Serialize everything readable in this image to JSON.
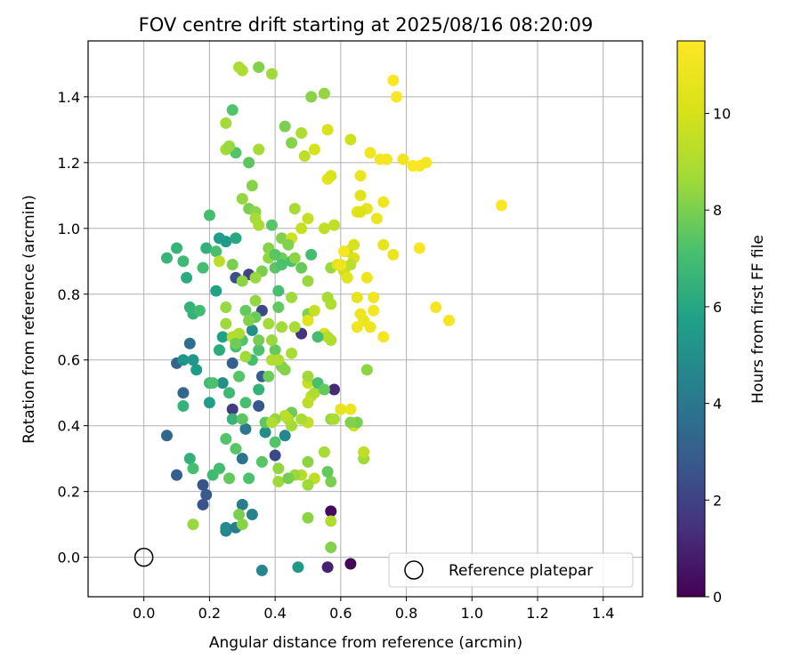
{
  "chart_data": {
    "type": "scatter",
    "title": "FOV centre drift starting at 2025/08/16 08:20:09",
    "xlabel": "Angular distance from reference (arcmin)",
    "ylabel": "Rotation from reference (arcmin)",
    "xlim": [
      -0.17,
      1.52
    ],
    "ylim": [
      -0.12,
      1.57
    ],
    "xticks": [
      0.0,
      0.2,
      0.4,
      0.6,
      0.8,
      1.0,
      1.2,
      1.4
    ],
    "xtick_labels": [
      "0.0",
      "0.2",
      "0.4",
      "0.6",
      "0.8",
      "1.0",
      "1.2",
      "1.4"
    ],
    "yticks": [
      0.0,
      0.2,
      0.4,
      0.6,
      0.8,
      1.0,
      1.2,
      1.4
    ],
    "ytick_labels": [
      "0.0",
      "0.2",
      "0.4",
      "0.6",
      "0.8",
      "1.0",
      "1.2",
      "1.4"
    ],
    "grid": true,
    "colormap": "viridis",
    "colorbar": {
      "label": "Hours from first FF file",
      "range": [
        0,
        11.5
      ],
      "ticks": [
        0,
        2,
        4,
        6,
        8,
        10
      ],
      "tick_labels": [
        "0",
        "2",
        "4",
        "6",
        "8",
        "10"
      ]
    },
    "legend": {
      "position": "lower-right",
      "entries": [
        "Reference platepar"
      ]
    },
    "reference_point": {
      "x": 0.0,
      "y": 0.0,
      "label": "Reference platepar"
    },
    "points": [
      [
        0.57,
        0.14,
        0.3
      ],
      [
        0.63,
        -0.02,
        0.2
      ],
      [
        0.56,
        -0.03,
        1.0
      ],
      [
        0.36,
        -0.04,
        4.6
      ],
      [
        0.47,
        -0.03,
        5.4
      ],
      [
        0.58,
        0.51,
        1.2
      ],
      [
        0.48,
        0.68,
        1.5
      ],
      [
        0.27,
        0.45,
        1.8
      ],
      [
        0.32,
        0.86,
        2.0
      ],
      [
        0.4,
        0.31,
        2.3
      ],
      [
        0.28,
        0.85,
        2.4
      ],
      [
        0.18,
        0.16,
        2.6
      ],
      [
        0.18,
        0.22,
        2.6
      ],
      [
        0.19,
        0.19,
        2.8
      ],
      [
        0.27,
        0.59,
        3.0
      ],
      [
        0.35,
        0.46,
        2.7
      ],
      [
        0.36,
        0.55,
        2.9
      ],
      [
        0.36,
        0.75,
        2.2
      ],
      [
        0.1,
        0.25,
        3.0
      ],
      [
        0.1,
        0.59,
        3.2
      ],
      [
        0.07,
        0.37,
        3.4
      ],
      [
        0.12,
        0.5,
        3.4
      ],
      [
        0.14,
        0.65,
        3.6
      ],
      [
        0.3,
        0.3,
        3.8
      ],
      [
        0.31,
        0.39,
        4.0
      ],
      [
        0.3,
        0.16,
        4.2
      ],
      [
        0.33,
        0.13,
        4.4
      ],
      [
        0.25,
        0.08,
        4.6
      ],
      [
        0.25,
        0.09,
        4.8
      ],
      [
        0.28,
        0.09,
        4.2
      ],
      [
        0.37,
        0.38,
        4.9
      ],
      [
        0.43,
        0.37,
        4.6
      ],
      [
        0.33,
        0.69,
        5.0
      ],
      [
        0.12,
        0.6,
        5.2
      ],
      [
        0.15,
        0.6,
        5.3
      ],
      [
        0.16,
        0.57,
        5.5
      ],
      [
        0.2,
        0.47,
        5.6
      ],
      [
        0.24,
        0.67,
        5.7
      ],
      [
        0.24,
        0.53,
        5.0
      ],
      [
        0.22,
        0.81,
        5.8
      ],
      [
        0.25,
        0.96,
        5.4
      ],
      [
        0.23,
        0.97,
        5.6
      ],
      [
        0.28,
        0.97,
        6.0
      ],
      [
        0.23,
        0.63,
        6.2
      ],
      [
        0.14,
        0.3,
        6.4
      ],
      [
        0.19,
        0.94,
        6.4
      ],
      [
        0.14,
        0.76,
        6.5
      ],
      [
        0.07,
        0.91,
        6.6
      ],
      [
        0.1,
        0.94,
        6.6
      ],
      [
        0.12,
        0.9,
        6.8
      ],
      [
        0.2,
        0.53,
        6.9
      ],
      [
        0.2,
        1.04,
        7.0
      ],
      [
        0.18,
        0.88,
        7.0
      ],
      [
        0.22,
        0.93,
        7.1
      ],
      [
        0.21,
        0.53,
        7.2
      ],
      [
        0.25,
        0.36,
        7.3
      ],
      [
        0.28,
        0.33,
        7.4
      ],
      [
        0.36,
        0.29,
        7.4
      ],
      [
        0.37,
        0.41,
        7.5
      ],
      [
        0.4,
        0.35,
        7.3
      ],
      [
        0.43,
        0.43,
        7.6
      ],
      [
        0.45,
        0.44,
        7.8
      ],
      [
        0.33,
        0.6,
        7.0
      ],
      [
        0.35,
        0.63,
        7.2
      ],
      [
        0.38,
        0.55,
        7.8
      ],
      [
        0.4,
        0.63,
        7.6
      ],
      [
        0.42,
        0.58,
        8.0
      ],
      [
        0.43,
        0.57,
        8.2
      ],
      [
        0.35,
        0.51,
        6.5
      ],
      [
        0.3,
        0.66,
        7.3
      ],
      [
        0.29,
        0.55,
        7.4
      ],
      [
        0.27,
        0.42,
        6.6
      ],
      [
        0.3,
        0.42,
        7.5
      ],
      [
        0.31,
        0.47,
        7.1
      ],
      [
        0.26,
        0.5,
        6.8
      ],
      [
        0.28,
        0.64,
        7.0
      ],
      [
        0.31,
        0.75,
        7.6
      ],
      [
        0.34,
        0.73,
        7.7
      ],
      [
        0.35,
        0.66,
        7.9
      ],
      [
        0.36,
        0.87,
        8.0
      ],
      [
        0.39,
        1.01,
        7.4
      ],
      [
        0.41,
        0.76,
        7.6
      ],
      [
        0.42,
        0.91,
        7.8
      ],
      [
        0.42,
        0.97,
        8.1
      ],
      [
        0.38,
        0.94,
        8.2
      ],
      [
        0.45,
        0.9,
        7.2
      ],
      [
        0.46,
        0.91,
        8.3
      ],
      [
        0.48,
        0.88,
        7.7
      ],
      [
        0.5,
        0.84,
        8.5
      ],
      [
        0.51,
        0.92,
        7.0
      ],
      [
        0.45,
        0.79,
        8.6
      ],
      [
        0.41,
        0.81,
        7.1
      ],
      [
        0.42,
        0.7,
        8.7
      ],
      [
        0.46,
        0.7,
        8.8
      ],
      [
        0.45,
        0.62,
        8.9
      ],
      [
        0.41,
        0.6,
        9.0
      ],
      [
        0.39,
        0.66,
        8.5
      ],
      [
        0.38,
        0.71,
        8.7
      ],
      [
        0.32,
        0.72,
        8.1
      ],
      [
        0.34,
        0.78,
        8.4
      ],
      [
        0.39,
        0.6,
        9.1
      ],
      [
        0.31,
        0.61,
        8.6
      ],
      [
        0.29,
        0.68,
        8.9
      ],
      [
        0.27,
        0.67,
        9.2
      ],
      [
        0.25,
        0.76,
        8.5
      ],
      [
        0.23,
        0.9,
        9.3
      ],
      [
        0.25,
        0.71,
        8.6
      ],
      [
        0.27,
        0.89,
        8.0
      ],
      [
        0.3,
        0.84,
        8.3
      ],
      [
        0.34,
        0.85,
        8.5
      ],
      [
        0.32,
        1.06,
        8.0
      ],
      [
        0.34,
        1.05,
        8.3
      ],
      [
        0.34,
        1.03,
        8.8
      ],
      [
        0.35,
        1.01,
        8.9
      ],
      [
        0.3,
        1.09,
        8.4
      ],
      [
        0.33,
        1.13,
        8.2
      ],
      [
        0.35,
        1.24,
        8.8
      ],
      [
        0.32,
        1.2,
        7.5
      ],
      [
        0.28,
        1.23,
        7.3
      ],
      [
        0.25,
        1.24,
        8.7
      ],
      [
        0.26,
        1.25,
        8.5
      ],
      [
        0.25,
        1.32,
        8.7
      ],
      [
        0.27,
        1.36,
        7.3
      ],
      [
        0.29,
        1.49,
        8.9
      ],
      [
        0.3,
        1.48,
        9.0
      ],
      [
        0.35,
        1.49,
        8.1
      ],
      [
        0.39,
        1.47,
        8.6
      ],
      [
        0.43,
        1.31,
        8.0
      ],
      [
        0.45,
        1.26,
        8.2
      ],
      [
        0.48,
        1.29,
        9.0
      ],
      [
        0.49,
        1.22,
        9.4
      ],
      [
        0.51,
        1.4,
        8.2
      ],
      [
        0.55,
        1.41,
        8.4
      ],
      [
        0.52,
        1.24,
        10.0
      ],
      [
        0.56,
        1.3,
        10.2
      ],
      [
        0.56,
        1.15,
        10.6
      ],
      [
        0.57,
        1.16,
        10.2
      ],
      [
        0.63,
        1.27,
        9.8
      ],
      [
        0.66,
        1.16,
        10.8
      ],
      [
        0.66,
        1.1,
        10.4
      ],
      [
        0.65,
        1.05,
        10.6
      ],
      [
        0.68,
        1.06,
        10.6
      ],
      [
        0.66,
        1.05,
        10.2
      ],
      [
        0.58,
        1.01,
        9.4
      ],
      [
        0.55,
        1.0,
        9.4
      ],
      [
        0.5,
        1.03,
        9.6
      ],
      [
        0.46,
        1.06,
        8.8
      ],
      [
        0.45,
        0.97,
        9.8
      ],
      [
        0.4,
        0.88,
        7.5
      ],
      [
        0.5,
        0.74,
        8.1
      ],
      [
        0.52,
        0.75,
        9.6
      ],
      [
        0.55,
        0.68,
        10.0
      ],
      [
        0.5,
        0.72,
        10.4
      ],
      [
        0.57,
        0.88,
        8.5
      ],
      [
        0.56,
        0.79,
        8.8
      ],
      [
        0.57,
        0.77,
        9.0
      ],
      [
        0.59,
        0.89,
        10.3
      ],
      [
        0.61,
        0.87,
        9.8
      ],
      [
        0.62,
        0.93,
        9.4
      ],
      [
        0.64,
        0.95,
        10.0
      ],
      [
        0.64,
        0.91,
        10.2
      ],
      [
        0.63,
        0.89,
        9.3
      ],
      [
        0.62,
        0.85,
        10.4
      ],
      [
        0.65,
        0.79,
        10.6
      ],
      [
        0.66,
        0.74,
        10.9
      ],
      [
        0.67,
        0.72,
        10.8
      ],
      [
        0.68,
        0.85,
        10.9
      ],
      [
        0.7,
        0.79,
        11.0
      ],
      [
        0.7,
        0.75,
        11.1
      ],
      [
        0.69,
        0.7,
        10.9
      ],
      [
        0.65,
        0.7,
        11.0
      ],
      [
        0.73,
        0.67,
        11.1
      ],
      [
        0.76,
        0.92,
        10.8
      ],
      [
        0.73,
        0.95,
        10.6
      ],
      [
        0.71,
        1.03,
        10.8
      ],
      [
        0.73,
        1.08,
        11.0
      ],
      [
        0.72,
        1.21,
        11.1
      ],
      [
        0.69,
        1.23,
        11.0
      ],
      [
        0.74,
        1.21,
        11.2
      ],
      [
        0.79,
        1.21,
        11.0
      ],
      [
        0.84,
        1.19,
        11.3
      ],
      [
        0.86,
        1.2,
        11.2
      ],
      [
        0.82,
        1.19,
        11.4
      ],
      [
        0.84,
        0.94,
        11.3
      ],
      [
        0.89,
        0.76,
        11.1
      ],
      [
        0.93,
        0.72,
        11.2
      ],
      [
        1.09,
        1.07,
        11.4
      ],
      [
        0.76,
        1.45,
        11.4
      ],
      [
        0.77,
        1.4,
        11.3
      ],
      [
        0.61,
        0.93,
        11.2
      ],
      [
        0.6,
        0.89,
        10.9
      ],
      [
        0.63,
        0.45,
        10.8
      ],
      [
        0.6,
        0.45,
        10.6
      ],
      [
        0.64,
        0.4,
        9.8
      ],
      [
        0.65,
        0.41,
        8.0
      ],
      [
        0.63,
        0.41,
        8.1
      ],
      [
        0.67,
        0.3,
        8.6
      ],
      [
        0.67,
        0.32,
        9.4
      ],
      [
        0.68,
        0.57,
        8.3
      ],
      [
        0.57,
        0.66,
        9.0
      ],
      [
        0.56,
        0.67,
        9.2
      ],
      [
        0.53,
        0.67,
        7.0
      ],
      [
        0.57,
        0.42,
        8.4
      ],
      [
        0.58,
        0.42,
        8.9
      ],
      [
        0.57,
        0.23,
        8.0
      ],
      [
        0.56,
        0.26,
        7.6
      ],
      [
        0.55,
        0.32,
        8.8
      ],
      [
        0.5,
        0.29,
        8.3
      ],
      [
        0.52,
        0.24,
        9.4
      ],
      [
        0.5,
        0.22,
        8.6
      ],
      [
        0.48,
        0.25,
        9.2
      ],
      [
        0.46,
        0.25,
        8.5
      ],
      [
        0.45,
        0.4,
        8.7
      ],
      [
        0.44,
        0.42,
        8.9
      ],
      [
        0.43,
        0.43,
        9.3
      ],
      [
        0.4,
        0.42,
        8.4
      ],
      [
        0.39,
        0.41,
        9.0
      ],
      [
        0.41,
        0.27,
        8.4
      ],
      [
        0.41,
        0.23,
        8.6
      ],
      [
        0.44,
        0.24,
        7.9
      ],
      [
        0.5,
        0.12,
        8.3
      ],
      [
        0.57,
        0.03,
        8.1
      ],
      [
        0.57,
        0.11,
        9.1
      ],
      [
        0.5,
        0.41,
        9.5
      ],
      [
        0.48,
        0.42,
        8.9
      ],
      [
        0.5,
        0.47,
        9.3
      ],
      [
        0.51,
        0.49,
        9.5
      ],
      [
        0.52,
        0.5,
        9.0
      ],
      [
        0.5,
        0.53,
        9.6
      ],
      [
        0.5,
        0.55,
        8.6
      ],
      [
        0.53,
        0.53,
        7.1
      ],
      [
        0.55,
        0.51,
        7.6
      ],
      [
        0.3,
        0.1,
        8.2
      ],
      [
        0.29,
        0.13,
        8.0
      ],
      [
        0.15,
        0.1,
        8.5
      ],
      [
        0.26,
        0.24,
        7.6
      ],
      [
        0.32,
        0.24,
        7.2
      ],
      [
        0.23,
        0.27,
        7.0
      ],
      [
        0.21,
        0.25,
        6.9
      ],
      [
        0.15,
        0.27,
        7.1
      ],
      [
        0.12,
        0.46,
        6.5
      ],
      [
        0.15,
        0.74,
        6.5
      ],
      [
        0.17,
        0.75,
        6.9
      ],
      [
        0.13,
        0.85,
        6.2
      ],
      [
        0.28,
        0.65,
        7.8
      ],
      [
        0.38,
        0.91,
        8.4
      ],
      [
        0.4,
        0.92,
        7.4
      ],
      [
        0.42,
        0.89,
        7.2
      ],
      [
        0.44,
        0.95,
        8.1
      ],
      [
        0.48,
        1.0,
        9.6
      ]
    ]
  }
}
